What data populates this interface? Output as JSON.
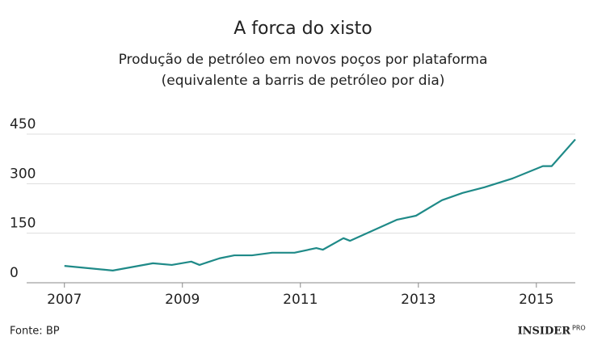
{
  "chart_data": {
    "type": "line",
    "title": "A forca do xisto",
    "subtitle": [
      "Produção de petróleo em novos poços por plataforma",
      "(equivalente a barris de petróleo por dia)"
    ],
    "source": "Fonte: BP",
    "logo": {
      "main": "INSIDER",
      "badge": "PRO"
    },
    "x": [
      2007.0,
      2007.82,
      2008.5,
      2008.82,
      2009.15,
      2009.29,
      2009.63,
      2009.88,
      2010.18,
      2010.52,
      2010.9,
      2011.27,
      2011.38,
      2011.73,
      2011.84,
      2012.64,
      2012.96,
      2013.4,
      2013.75,
      2014.12,
      2014.6,
      2015.11,
      2015.26,
      2015.66
    ],
    "series": [
      {
        "color": "#1f8a88",
        "values": [
          51,
          37,
          59,
          54,
          64,
          54,
          74,
          83,
          83,
          91,
          91,
          105,
          100,
          135,
          127,
          191,
          203,
          250,
          272,
          289,
          316,
          353,
          353,
          434
        ]
      }
    ],
    "xlim": [
      2006.36,
      2015.66
    ],
    "xticks": [
      2007,
      2009,
      2011,
      2013,
      2015
    ],
    "ylim": [
      0,
      450
    ],
    "yticks": [
      0,
      150,
      300,
      450
    ],
    "grid": true
  }
}
